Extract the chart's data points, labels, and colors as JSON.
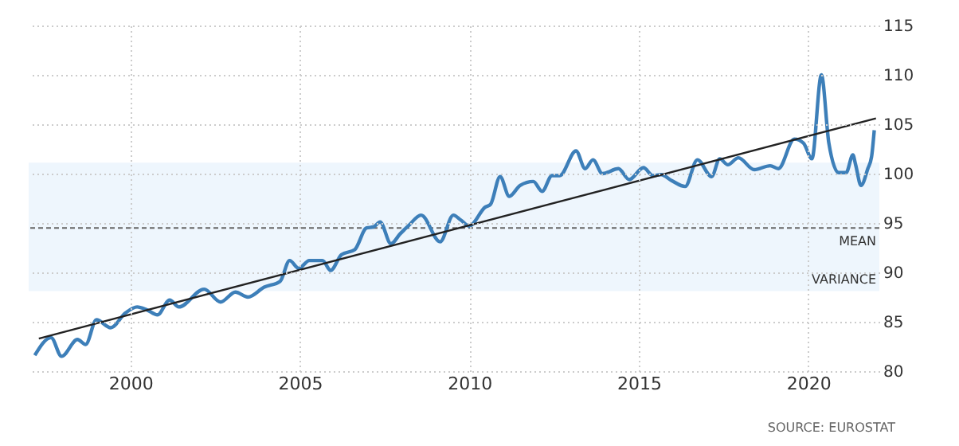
{
  "chart_data": {
    "type": "line",
    "xlim": [
      1997,
      2022.1
    ],
    "xticks": [
      2000,
      2005,
      2010,
      2015,
      2020
    ],
    "ylim": [
      80,
      115
    ],
    "yticks": [
      80,
      85,
      90,
      95,
      100,
      105,
      110,
      115
    ],
    "grid": true,
    "marker": "none",
    "series": [
      {
        "color": "#3d7fb9",
        "x": [
          1997.18,
          1997.66,
          1997.97,
          1998.44,
          1998.68,
          1999.0,
          1999.42,
          1999.86,
          2000.2,
          2000.49,
          2000.8,
          2001.16,
          2001.43,
          2002.18,
          2002.66,
          2003.1,
          2003.47,
          2003.95,
          2004.42,
          2004.7,
          2004.97,
          2005.28,
          2005.67,
          2005.91,
          2006.23,
          2006.62,
          2006.97,
          2007.17,
          2007.37,
          2007.69,
          2007.96,
          2008.2,
          2008.58,
          2009.14,
          2009.53,
          2009.75,
          2010.0,
          2010.47,
          2010.63,
          2010.91,
          2011.18,
          2011.5,
          2011.89,
          2012.15,
          2012.44,
          2012.67,
          2013.15,
          2013.42,
          2013.65,
          2013.93,
          2014.4,
          2014.72,
          2015.14,
          2015.42,
          2015.66,
          2015.97,
          2016.37,
          2016.73,
          2017.15,
          2017.39,
          2017.63,
          2017.94,
          2018.41,
          2018.88,
          2019.12,
          2019.59,
          2019.86,
          2020.11,
          2020.39,
          2020.61,
          2020.9,
          2021.12,
          2021.32,
          2021.4,
          2021.56,
          2021.76,
          2021.87,
          2021.95
        ],
        "values": [
          81.6,
          83.4,
          81.5,
          83.2,
          82.7,
          85.2,
          84.4,
          85.9,
          86.5,
          86.2,
          85.7,
          87.2,
          86.5,
          88.3,
          87.0,
          88.0,
          87.5,
          88.5,
          89.1,
          91.2,
          90.4,
          91.2,
          91.2,
          90.2,
          91.8,
          92.3,
          94.5,
          94.6,
          95.1,
          92.9,
          93.9,
          94.7,
          95.8,
          93.1,
          95.8,
          95.3,
          94.7,
          96.6,
          96.9,
          99.7,
          97.7,
          98.8,
          99.2,
          98.2,
          99.8,
          99.8,
          102.3,
          100.5,
          101.4,
          100.0,
          100.5,
          99.4,
          100.6,
          99.8,
          99.9,
          99.3,
          98.7,
          101.4,
          99.7,
          101.5,
          100.9,
          101.6,
          100.4,
          100.8,
          100.5,
          103.5,
          103.1,
          101.5,
          110.0,
          103.1,
          100.1,
          100.1,
          101.9,
          100.9,
          98.8,
          100.5,
          101.7,
          104.4
        ]
      },
      {
        "type": "line",
        "color": "#222222",
        "x": [
          1997.3,
          2022.0
        ],
        "values": [
          83.3,
          105.6
        ]
      }
    ],
    "bands": [
      {
        "axis": "y",
        "from": 88.1,
        "to": 101.1,
        "label": "VARIANCE",
        "color": "#eef6fd"
      }
    ],
    "ref_lines": [
      {
        "axis": "y",
        "value": 94.5,
        "label": "MEAN",
        "color": "#666666",
        "line_style": "dashed"
      }
    ],
    "annotations": [
      "SOURCE: EUROSTAT"
    ]
  }
}
